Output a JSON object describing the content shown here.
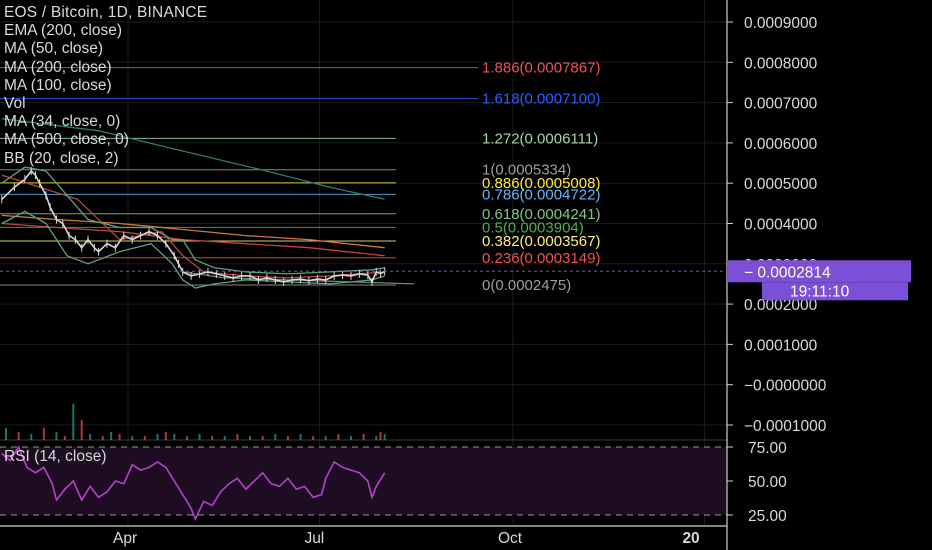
{
  "header": {
    "title": "EOS / Bitcoin, 1D, BINANCE",
    "indicators": [
      "EMA (200, close)",
      "MA (50, close)",
      "MA (200, close)",
      "MA (100, close)",
      "Vol",
      "MA (34, close, 0)",
      "MA (500, close, 0)",
      "BB (20, close, 2)"
    ]
  },
  "colors": {
    "background": "#000000",
    "grid": "#1b1b1b",
    "price_line": "#d9d9d9",
    "bb": "#5fa184",
    "ma_red": "#c2443e",
    "ma_orange": "#d37a3a",
    "ema_green": "#2f7d6a",
    "rsi_line": "#b542c9",
    "rsi_fill": "#1d0c22",
    "last_price_bg": "#7b4fd6"
  },
  "chart_data": {
    "type": "line",
    "title": "EOS / Bitcoin, 1D, BINANCE",
    "xlabel": "",
    "ylabel": "",
    "ylim": [
      -0.00014,
      0.00095
    ],
    "y_ticks": [
      "0.0009000",
      "0.0008000",
      "0.0007000",
      "0.0006000",
      "0.0005000",
      "0.0004000",
      "0.0003000",
      "0.0002000",
      "0.0001000",
      "−0.0000000",
      "−0.0001000"
    ],
    "y_tick_values": [
      0.0009,
      0.0008,
      0.0007,
      0.0006,
      0.0005,
      0.0004,
      0.0003,
      0.0002,
      0.0001,
      0.0,
      -0.0001
    ],
    "x_ticks": [
      "Apr",
      "Jul",
      "Oct",
      "20"
    ],
    "x_tick_days": [
      34,
      125,
      217,
      308
    ],
    "xlim_days": [
      -26,
      332
    ],
    "last_price": "0.0002814",
    "last_price_value": 0.0002814,
    "countdown": "19:11:10",
    "fib_levels": [
      {
        "label": "1.886(0.0007867)",
        "value": 0.0007867,
        "color": "#ef5350"
      },
      {
        "label": "1.618(0.0007100)",
        "value": 0.00071,
        "color": "#2962ff"
      },
      {
        "label": "1.272(0.0006111)",
        "value": 0.0006111,
        "color": "#a5d6a7"
      },
      {
        "label": "1(0.0005334)",
        "value": 0.0005334,
        "color": "#9e9e9e"
      },
      {
        "label": "0.886(0.0005008)",
        "value": 0.0005008,
        "color": "#ffeb3b"
      },
      {
        "label": "0.786(0.0004722)",
        "value": 0.0004722,
        "color": "#64b5f6"
      },
      {
        "label": "0.618(0.0004241)",
        "value": 0.0004241,
        "color": "#81c784"
      },
      {
        "label": "0.5(0.0003904)",
        "value": 0.0003904,
        "color": "#4caf50"
      },
      {
        "label": "0.382(0.0003567)",
        "value": 0.0003567,
        "color": "#fff176"
      },
      {
        "label": "0.236(0.0003149)",
        "value": 0.0003149,
        "color": "#ef5350"
      },
      {
        "label": "0(0.0002475)",
        "value": 0.0002475,
        "color": "#9e9e9e"
      }
    ],
    "price_series": {
      "x_days": [
        -26,
        -20,
        -15,
        -12,
        -10,
        -8,
        -5,
        -3,
        0,
        3,
        6,
        9,
        12,
        15,
        18,
        20,
        24,
        28,
        32,
        36,
        40,
        44,
        48,
        52,
        56,
        58,
        60,
        64,
        68,
        72,
        76,
        80,
        84,
        88,
        92,
        96,
        100,
        104,
        108,
        112,
        116,
        120,
        124,
        128,
        132,
        136,
        140,
        144,
        148,
        150,
        152,
        154,
        156
      ],
      "y": [
        0.00046,
        0.00049,
        0.00051,
        0.00053,
        0.00052,
        0.0005,
        0.00047,
        0.00044,
        0.00041,
        0.0004,
        0.00037,
        0.00036,
        0.00034,
        0.00036,
        0.00034,
        0.00033,
        0.00035,
        0.00034,
        0.00037,
        0.00036,
        0.00037,
        0.00038,
        0.00037,
        0.00035,
        0.00032,
        0.0003,
        0.00028,
        0.00027,
        0.000275,
        0.00028,
        0.000275,
        0.00027,
        0.000265,
        0.00027,
        0.00027,
        0.00026,
        0.000265,
        0.00026,
        0.000255,
        0.00026,
        0.000262,
        0.000258,
        0.000262,
        0.00026,
        0.00027,
        0.000272,
        0.00027,
        0.000275,
        0.000272,
        0.000255,
        0.00028,
        0.000275,
        0.0002814
      ]
    },
    "overlays": [
      {
        "x_days": [
          -26,
          0,
          30,
          60,
          90,
          120,
          156
        ],
        "y": [
          0.0004,
          0.00039,
          0.00038,
          0.00036,
          0.00035,
          0.00034,
          0.00032
        ],
        "color": "#c2443e"
      },
      {
        "x_days": [
          -26,
          0,
          30,
          60,
          90,
          120,
          156
        ],
        "y": [
          0.00042,
          0.00041,
          0.0004,
          0.000385,
          0.00037,
          0.00036,
          0.00034
        ],
        "color": "#d37a3a"
      },
      {
        "x_days": [
          -26,
          20,
          60,
          100,
          130,
          156
        ],
        "y": [
          0.00066,
          0.00063,
          0.00058,
          0.00053,
          0.00049,
          0.00046
        ],
        "color": "#2f7d6a"
      },
      {
        "x_days": [
          -26,
          10,
          30,
          50,
          60,
          70,
          90,
          110,
          130,
          156
        ],
        "y": [
          0.00052,
          0.00046,
          0.00036,
          0.00038,
          0.00032,
          0.00028,
          0.00027,
          0.000265,
          0.00027,
          0.00028
        ],
        "color": "#c2443e"
      },
      {
        "x_days": [
          60,
          80,
          110,
          140,
          170
        ],
        "y": [
          0.00028,
          0.000265,
          0.00026,
          0.000255,
          0.00025
        ],
        "color": "#6a8c7a"
      }
    ],
    "bb_upper": {
      "x_days": [
        -26,
        -15,
        -5,
        5,
        15,
        30,
        45,
        55,
        60,
        66,
        75,
        90,
        110,
        130,
        150,
        156
      ],
      "y": [
        0.0005,
        0.00054,
        0.00053,
        0.00047,
        0.00041,
        0.00039,
        0.00039,
        0.00036,
        0.00036,
        0.00031,
        0.00029,
        0.00028,
        0.000275,
        0.00028,
        0.000285,
        0.00029
      ]
    },
    "bb_lower": {
      "x_days": [
        -26,
        -15,
        -5,
        5,
        15,
        30,
        45,
        55,
        60,
        66,
        75,
        90,
        110,
        130,
        150,
        156
      ],
      "y": [
        0.0004,
        0.00043,
        0.0004,
        0.00032,
        0.0003,
        0.00033,
        0.00035,
        0.0003,
        0.00026,
        0.00024,
        0.00025,
        0.00026,
        0.000255,
        0.00025,
        0.00026,
        0.00027
      ]
    },
    "volume": {
      "x_days": [
        -24,
        -18,
        -12,
        -6,
        0,
        4,
        8,
        12,
        16,
        22,
        26,
        30,
        36,
        42,
        48,
        52,
        56,
        62,
        68,
        74,
        80,
        86,
        92,
        98,
        104,
        110,
        116,
        122,
        128,
        134,
        140,
        146,
        152,
        154,
        156
      ],
      "y": [
        3e-05,
        2e-05,
        1.5e-05,
        3e-05,
        2e-05,
        1e-05,
        9e-05,
        5e-05,
        1.5e-05,
        1e-05,
        2e-05,
        1.5e-05,
        1e-05,
        1e-05,
        1.5e-05,
        2e-05,
        1.5e-05,
        1e-05,
        1.5e-05,
        1e-05,
        1e-05,
        1.5e-05,
        1e-05,
        1e-05,
        1.5e-05,
        1e-05,
        1.5e-05,
        1e-05,
        1e-05,
        1.5e-05,
        1e-05,
        1.5e-05,
        1e-05,
        2e-05,
        1.5e-05
      ],
      "colors": [
        "#26a69a",
        "#ef5350"
      ]
    },
    "rsi": {
      "label": "RSI (14, close)",
      "ticks": [
        "75.00",
        "50.00",
        "25.00"
      ],
      "tick_values": [
        75,
        50,
        25
      ],
      "ylim": [
        18,
        82
      ],
      "x_days": [
        -26,
        -22,
        -18,
        -14,
        -10,
        -6,
        -2,
        0,
        4,
        8,
        12,
        16,
        20,
        24,
        28,
        32,
        36,
        40,
        44,
        48,
        52,
        56,
        60,
        64,
        66,
        70,
        74,
        78,
        82,
        86,
        90,
        94,
        98,
        102,
        106,
        110,
        114,
        118,
        122,
        126,
        128,
        132,
        136,
        140,
        144,
        148,
        150,
        152,
        156
      ],
      "y": [
        70,
        65,
        75,
        60,
        56,
        60,
        48,
        36,
        44,
        50,
        36,
        46,
        38,
        42,
        50,
        48,
        62,
        58,
        60,
        64,
        60,
        50,
        40,
        30,
        22,
        35,
        32,
        42,
        48,
        52,
        44,
        50,
        56,
        48,
        46,
        52,
        44,
        46,
        38,
        40,
        52,
        64,
        60,
        58,
        56,
        50,
        38,
        46,
        56
      ]
    }
  }
}
